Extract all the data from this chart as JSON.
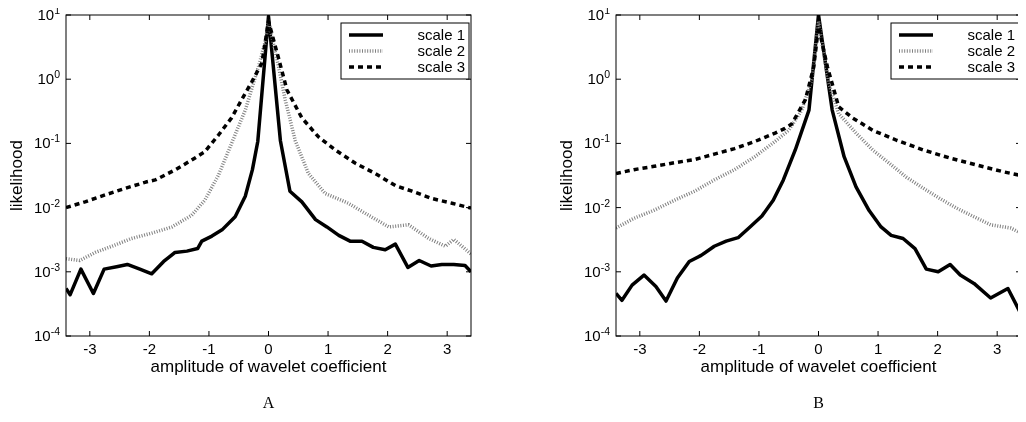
{
  "chart_data": [
    {
      "type": "line",
      "xlabel": "amplitude of wavelet coefficient",
      "ylabel": "likelihood",
      "annotations": [
        "A"
      ],
      "log": "y",
      "legend": "top right",
      "xlim": [
        -3.4,
        3.4
      ],
      "xticks": [
        -3,
        -2,
        -1,
        0,
        1,
        2,
        3
      ],
      "ylim": [
        0.0001,
        10
      ],
      "yticks": [
        {
          "value": 0.0001,
          "label": "10$^{-4}$"
        },
        {
          "value": 0.001,
          "label": "10$^{-3}$"
        },
        {
          "value": 0.01,
          "label": "10$^{-2}$"
        },
        {
          "value": 0.1,
          "label": "10$^{-1}$"
        },
        {
          "value": 1,
          "label": "10$^{0}$"
        },
        {
          "value": 10,
          "label": "10$^{1}$"
        }
      ],
      "series": [
        {
          "name": "scale 1",
          "color": "#000000",
          "line_style": "solid",
          "x": [
            -3.4,
            -3.33,
            -3.15,
            -2.94,
            -2.76,
            -2.55,
            -2.37,
            -2.16,
            -1.96,
            -1.76,
            -1.57,
            -1.37,
            -1.19,
            -1.12,
            -0.95,
            -0.78,
            -0.56,
            -0.39,
            -0.27,
            -0.18,
            0,
            0.2,
            0.36,
            0.56,
            0.79,
            0.98,
            1.18,
            1.37,
            1.57,
            1.76,
            1.96,
            2.13,
            2.34,
            2.53,
            2.73,
            2.91,
            3.11,
            3.3,
            3.4
          ],
          "values": [
            0.00055,
            0.00044,
            0.0011,
            0.00046,
            0.0011,
            0.0012,
            0.0013,
            0.0011,
            0.00093,
            0.00145,
            0.002,
            0.0021,
            0.0023,
            0.003,
            0.0036,
            0.0045,
            0.0072,
            0.015,
            0.039,
            0.107,
            9.5,
            0.11,
            0.018,
            0.0123,
            0.0065,
            0.005,
            0.0037,
            0.003,
            0.003,
            0.0024,
            0.0022,
            0.0027,
            0.00117,
            0.0015,
            0.00123,
            0.0013,
            0.0013,
            0.00125,
            0.001
          ]
        },
        {
          "name": "scale 2",
          "color": "#808080",
          "line_style": "dotted",
          "x": [
            -3.4,
            -3.17,
            -2.91,
            -2.63,
            -2.3,
            -1.96,
            -1.62,
            -1.29,
            -1.07,
            -0.84,
            -0.62,
            -0.39,
            -0.17,
            -0.05,
            0,
            0.17,
            0.28,
            0.45,
            0.67,
            0.95,
            1.34,
            1.68,
            2.02,
            2.35,
            2.69,
            2.97,
            3.11,
            3.4
          ],
          "values": [
            0.0016,
            0.0015,
            0.002,
            0.0025,
            0.0033,
            0.004,
            0.005,
            0.0076,
            0.013,
            0.032,
            0.1,
            0.33,
            1.55,
            4,
            8,
            1.55,
            0.48,
            0.11,
            0.034,
            0.0166,
            0.0117,
            0.0076,
            0.005,
            0.0054,
            0.0033,
            0.0025,
            0.0032,
            0.0019
          ]
        },
        {
          "name": "scale 3",
          "color": "#000000",
          "line_style": "dashed",
          "x": [
            -3.4,
            -3.08,
            -2.74,
            -2.4,
            -2.06,
            -1.9,
            -1.56,
            -1.29,
            -1.07,
            -0.84,
            -0.62,
            -0.45,
            -0.28,
            -0.11,
            0,
            0.17,
            0.31,
            0.56,
            0.84,
            1.12,
            1.46,
            1.79,
            2.13,
            2.41,
            2.75,
            3.08,
            3.4
          ],
          "values": [
            0.01,
            0.0123,
            0.0158,
            0.02,
            0.025,
            0.027,
            0.039,
            0.055,
            0.074,
            0.135,
            0.25,
            0.48,
            0.91,
            1.8,
            8,
            2.1,
            0.68,
            0.25,
            0.126,
            0.079,
            0.049,
            0.034,
            0.022,
            0.018,
            0.0138,
            0.0117,
            0.0098
          ]
        }
      ]
    },
    {
      "type": "line",
      "xlabel": "amplitude of wavelet coefficient",
      "ylabel": "likelihood",
      "annotations": [
        "B"
      ],
      "log": "y",
      "legend": "top right",
      "xlim": [
        -3.4,
        3.4
      ],
      "xticks": [
        -3,
        -2,
        -1,
        0,
        1,
        2,
        3
      ],
      "ylim": [
        0.0001,
        10
      ],
      "yticks": [
        {
          "value": 0.0001,
          "label": "10$^{-4}$"
        },
        {
          "value": 0.001,
          "label": "10$^{-3}$"
        },
        {
          "value": 0.01,
          "label": "10$^{-2}$"
        },
        {
          "value": 0.1,
          "label": "10$^{-1}$"
        },
        {
          "value": 1,
          "label": "10$^{0}$"
        },
        {
          "value": 10,
          "label": "10$^{1}$"
        }
      ],
      "series": [
        {
          "name": "scale 1",
          "color": "#000000",
          "line_style": "solid",
          "x": [
            -3.4,
            -3.3,
            -3.13,
            -2.93,
            -2.73,
            -2.56,
            -2.37,
            -2.17,
            -1.97,
            -1.75,
            -1.55,
            -1.35,
            -1.15,
            -0.95,
            -0.76,
            -0.59,
            -0.39,
            -0.16,
            0,
            0.23,
            0.43,
            0.63,
            0.85,
            1.05,
            1.22,
            1.42,
            1.62,
            1.81,
            2.01,
            2.21,
            2.38,
            2.61,
            2.89,
            3.18,
            3.4
          ],
          "values": [
            0.00046,
            0.00036,
            0.00062,
            0.00089,
            0.00059,
            0.00035,
            0.0008,
            0.00145,
            0.0018,
            0.0025,
            0.003,
            0.0034,
            0.005,
            0.0074,
            0.013,
            0.027,
            0.079,
            0.33,
            10,
            0.33,
            0.062,
            0.021,
            0.009,
            0.005,
            0.0037,
            0.0033,
            0.0023,
            0.0011,
            0.001,
            0.0013,
            0.00089,
            0.00066,
            0.00039,
            0.00055,
            0.00022
          ]
        },
        {
          "name": "scale 2",
          "color": "#808080",
          "line_style": "dotted",
          "x": [
            -3.4,
            -3.1,
            -2.76,
            -2.42,
            -2.08,
            -1.75,
            -1.41,
            -1.07,
            -0.73,
            -0.5,
            -0.28,
            -0.11,
            0,
            0.17,
            0.34,
            0.63,
            0.91,
            1.19,
            1.47,
            1.76,
            2.04,
            2.32,
            2.61,
            2.89,
            3.23,
            3.4
          ],
          "values": [
            0.0048,
            0.0068,
            0.0091,
            0.013,
            0.018,
            0.027,
            0.039,
            0.062,
            0.107,
            0.16,
            0.33,
            1,
            8,
            0.87,
            0.29,
            0.145,
            0.079,
            0.049,
            0.03,
            0.02,
            0.0138,
            0.0098,
            0.0072,
            0.0054,
            0.0048,
            0.004
          ]
        },
        {
          "name": "scale 3",
          "color": "#000000",
          "line_style": "dashed",
          "x": [
            -3.4,
            -3.1,
            -2.76,
            -2.42,
            -2.08,
            -1.75,
            -1.41,
            -1.07,
            -0.73,
            -0.57,
            -0.45,
            -0.22,
            -0.08,
            0,
            0.15,
            0.34,
            0.57,
            0.91,
            1.31,
            1.76,
            2.21,
            2.66,
            3.11,
            3.37
          ],
          "values": [
            0.034,
            0.039,
            0.044,
            0.05,
            0.056,
            0.068,
            0.083,
            0.107,
            0.145,
            0.17,
            0.2,
            0.48,
            1.55,
            6.6,
            1.55,
            0.37,
            0.25,
            0.16,
            0.112,
            0.079,
            0.059,
            0.046,
            0.036,
            0.032
          ]
        }
      ]
    }
  ]
}
